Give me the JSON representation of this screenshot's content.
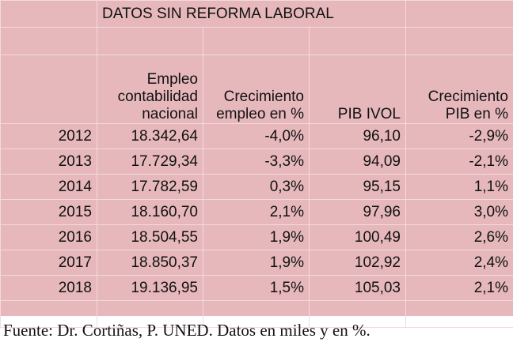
{
  "table": {
    "title": "DATOS SIN REFORMA LABORAL",
    "headers": [
      "",
      "Empleo contabilidad nacional",
      "Crecimiento empleo en %",
      "PIB IVOL",
      "Crecimiento PIB en %"
    ],
    "rows": [
      [
        "2012",
        "18.342,64",
        "-4,0%",
        "96,10",
        "-2,9%"
      ],
      [
        "2013",
        "17.729,34",
        "-3,3%",
        "94,09",
        "-2,1%"
      ],
      [
        "2014",
        "17.782,59",
        "0,3%",
        "95,15",
        "1,1%"
      ],
      [
        "2015",
        "18.160,70",
        "2,1%",
        "97,96",
        "3,0%"
      ],
      [
        "2016",
        "18.504,55",
        "1,9%",
        "100,49",
        "2,6%"
      ],
      [
        "2017",
        "18.850,37",
        "1,9%",
        "102,92",
        "2,4%"
      ],
      [
        "2018",
        "19.136,95",
        "1,5%",
        "105,03",
        "2,1%"
      ]
    ]
  },
  "footer": "Fuente: Dr. Cortiñas, P. UNED. Datos en miles y en %.",
  "colors": {
    "cell_background": "#e6b8bc",
    "gridline": "#f3dadd",
    "text": "#111111"
  }
}
